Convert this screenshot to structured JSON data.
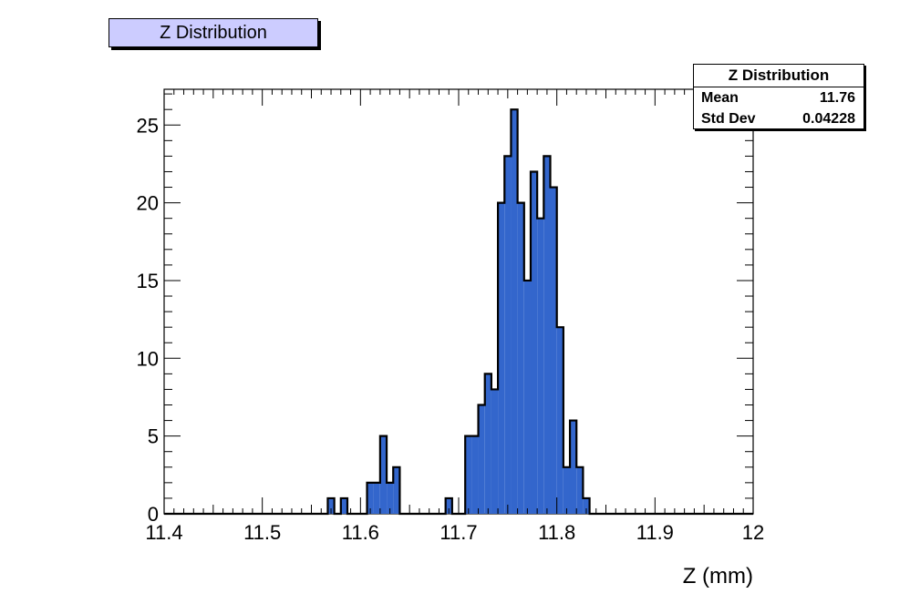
{
  "legend_title": "Z Distribution",
  "stats": {
    "title": "Z Distribution",
    "mean_label": "Mean",
    "mean_value": "11.76",
    "stddev_label": "Std Dev",
    "stddev_value": "0.04228"
  },
  "colors": {
    "fill": "#3366cc",
    "stroke": "#000000",
    "title_bg": "#ccccff"
  },
  "chart_data": {
    "type": "bar",
    "xlabel": "Z (mm)",
    "ylabel": "",
    "xlim": [
      11.4,
      12.0
    ],
    "ylim": [
      0,
      27.3
    ],
    "bin_width": 0.006667,
    "x_ticks": [
      "11.4",
      "11.5",
      "11.6",
      "11.7",
      "11.8",
      "11.9",
      "12"
    ],
    "y_ticks": [
      "0",
      "5",
      "10",
      "15",
      "20",
      "25"
    ],
    "bins": [
      {
        "x": 11.5667,
        "y": 1
      },
      {
        "x": 11.58,
        "y": 1
      },
      {
        "x": 11.6067,
        "y": 2
      },
      {
        "x": 11.6133,
        "y": 2
      },
      {
        "x": 11.62,
        "y": 5
      },
      {
        "x": 11.6267,
        "y": 2
      },
      {
        "x": 11.6333,
        "y": 3
      },
      {
        "x": 11.6867,
        "y": 1
      },
      {
        "x": 11.7067,
        "y": 5
      },
      {
        "x": 11.7133,
        "y": 5
      },
      {
        "x": 11.72,
        "y": 7
      },
      {
        "x": 11.7267,
        "y": 9
      },
      {
        "x": 11.7333,
        "y": 8
      },
      {
        "x": 11.74,
        "y": 20
      },
      {
        "x": 11.7467,
        "y": 23
      },
      {
        "x": 11.7533,
        "y": 26
      },
      {
        "x": 11.76,
        "y": 20
      },
      {
        "x": 11.7667,
        "y": 15
      },
      {
        "x": 11.7733,
        "y": 22
      },
      {
        "x": 11.78,
        "y": 19
      },
      {
        "x": 11.7867,
        "y": 23
      },
      {
        "x": 11.7933,
        "y": 21
      },
      {
        "x": 11.8,
        "y": 12
      },
      {
        "x": 11.8067,
        "y": 3
      },
      {
        "x": 11.8133,
        "y": 6
      },
      {
        "x": 11.82,
        "y": 3
      },
      {
        "x": 11.8267,
        "y": 1
      }
    ]
  }
}
